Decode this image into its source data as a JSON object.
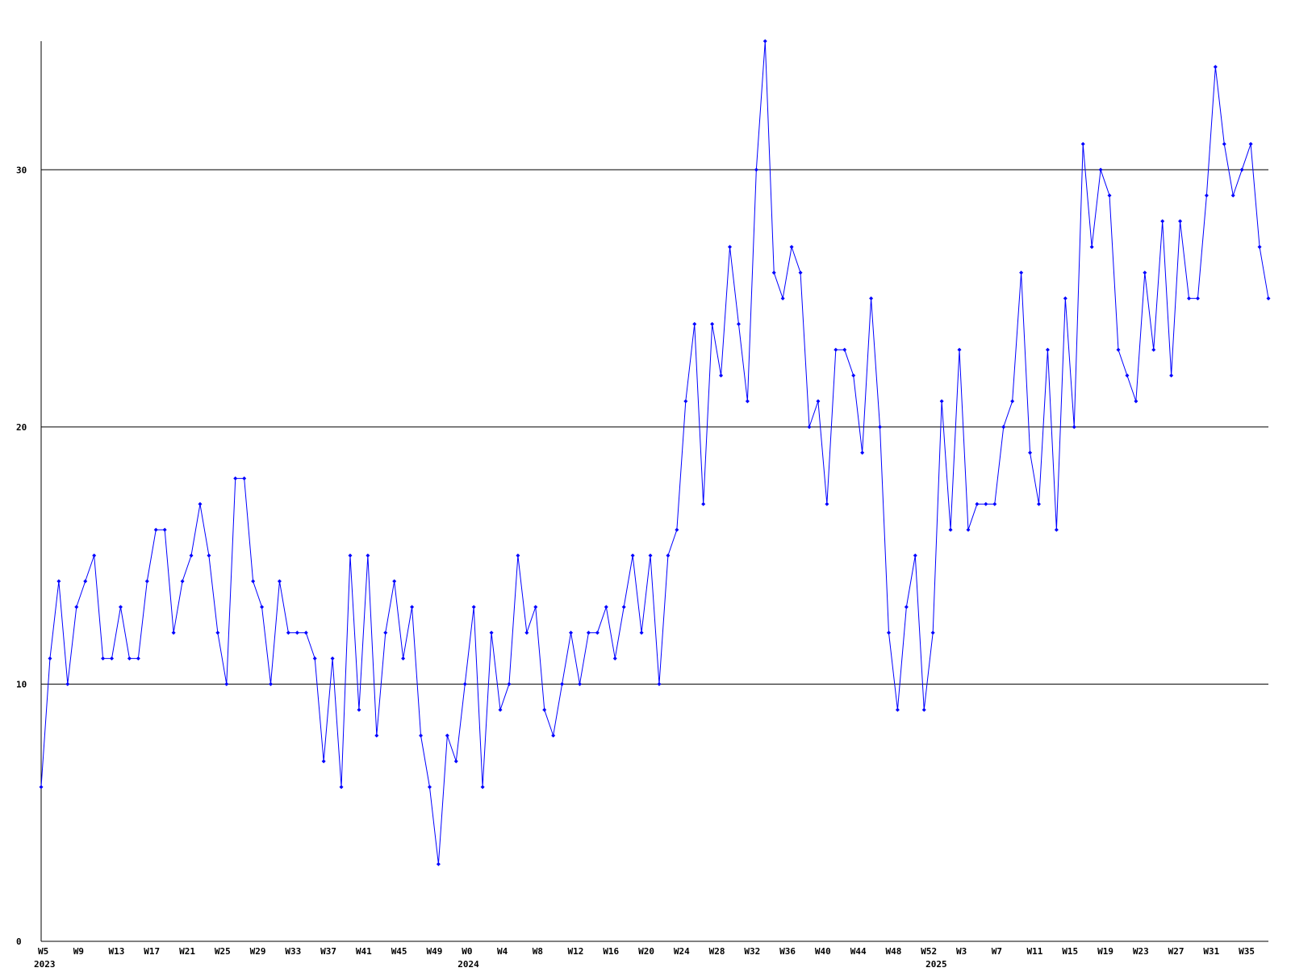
{
  "chart_data": {
    "type": "line",
    "categories": [
      "W5",
      null,
      null,
      null,
      "W9",
      null,
      null,
      null,
      "W13",
      null,
      null,
      null,
      "W17",
      null,
      null,
      null,
      "W21",
      null,
      null,
      null,
      "W25",
      null,
      null,
      null,
      "W29",
      null,
      null,
      null,
      "W33",
      null,
      null,
      null,
      "W37",
      null,
      null,
      null,
      "W41",
      null,
      null,
      null,
      "W45",
      null,
      null,
      null,
      "W49",
      null,
      null,
      null,
      "W0",
      null,
      null,
      null,
      "W4",
      null,
      null,
      null,
      "W8",
      null,
      null,
      null,
      "W12",
      null,
      null,
      null,
      "W16",
      null,
      null,
      null,
      "W20",
      null,
      null,
      null,
      "W24",
      null,
      null,
      null,
      "W28",
      null,
      null,
      null,
      "W32",
      null,
      null,
      null,
      "W36",
      null,
      null,
      null,
      "W40",
      null,
      null,
      null,
      "W44",
      null,
      null,
      null,
      "W48",
      null,
      null,
      null,
      "W52",
      null,
      null,
      null,
      "W3",
      null,
      null,
      null,
      "W7",
      null,
      null,
      null,
      "W11",
      null,
      null,
      null,
      "W15",
      null,
      null,
      null,
      "W19",
      null,
      null,
      null,
      "W23",
      null,
      null,
      null,
      "W27",
      null,
      null,
      null,
      "W31",
      null,
      null,
      null,
      "W35",
      null,
      null,
      null
    ],
    "years": [
      "2023",
      null,
      null,
      null,
      null,
      null,
      null,
      null,
      null,
      null,
      null,
      null,
      null,
      null,
      null,
      null,
      null,
      null,
      null,
      null,
      null,
      null,
      null,
      null,
      null,
      null,
      null,
      null,
      null,
      null,
      null,
      null,
      null,
      null,
      null,
      null,
      null,
      null,
      null,
      null,
      null,
      null,
      null,
      null,
      null,
      null,
      null,
      null,
      "2024",
      null,
      null,
      null,
      null,
      null,
      null,
      null,
      null,
      null,
      null,
      null,
      null,
      null,
      null,
      null,
      null,
      null,
      null,
      null,
      null,
      null,
      null,
      null,
      null,
      null,
      null,
      null,
      null,
      null,
      null,
      null,
      null,
      null,
      null,
      null,
      null,
      null,
      null,
      null,
      null,
      null,
      null,
      null,
      null,
      null,
      null,
      null,
      null,
      null,
      null,
      null,
      null,
      "2025",
      null,
      null,
      null,
      null,
      null,
      null,
      null,
      null,
      null,
      null,
      null,
      null,
      null,
      null,
      null,
      null,
      null,
      null,
      null,
      null,
      null,
      null,
      null,
      null,
      null,
      null,
      null,
      null,
      null,
      null,
      null,
      null,
      null,
      null,
      null,
      null,
      null
    ],
    "series": [
      {
        "color": "#0000ff",
        "values": [
          6,
          11,
          14,
          10,
          13,
          14,
          15,
          11,
          11,
          13,
          11,
          11,
          14,
          16,
          16,
          12,
          14,
          15,
          17,
          15,
          12,
          10,
          18,
          18,
          14,
          13,
          10,
          14,
          12,
          12,
          12,
          11,
          7,
          11,
          6,
          15,
          9,
          15,
          8,
          12,
          14,
          11,
          13,
          8,
          6,
          3,
          8,
          7,
          10,
          13,
          6,
          12,
          9,
          10,
          15,
          12,
          13,
          9,
          8,
          10,
          12,
          10,
          12,
          12,
          13,
          11,
          13,
          15,
          12,
          15,
          10,
          15,
          16,
          21,
          24,
          17,
          24,
          22,
          27,
          24,
          21,
          30,
          35,
          26,
          25,
          27,
          26,
          20,
          21,
          17,
          23,
          23,
          22,
          19,
          25,
          20,
          12,
          9,
          13,
          15,
          9,
          12,
          21,
          16,
          23,
          16,
          17,
          17,
          17,
          20,
          21,
          26,
          19,
          17,
          23,
          16,
          25,
          20,
          31,
          27,
          30,
          29,
          23,
          22,
          21,
          26,
          23,
          28,
          22,
          28,
          25,
          25,
          29,
          34,
          31,
          29,
          30,
          31,
          27,
          25
        ]
      }
    ],
    "ylim": [
      0,
      35
    ],
    "yticks": [
      0,
      10,
      20,
      30
    ],
    "grid": true,
    "grid_color": "#000000"
  }
}
